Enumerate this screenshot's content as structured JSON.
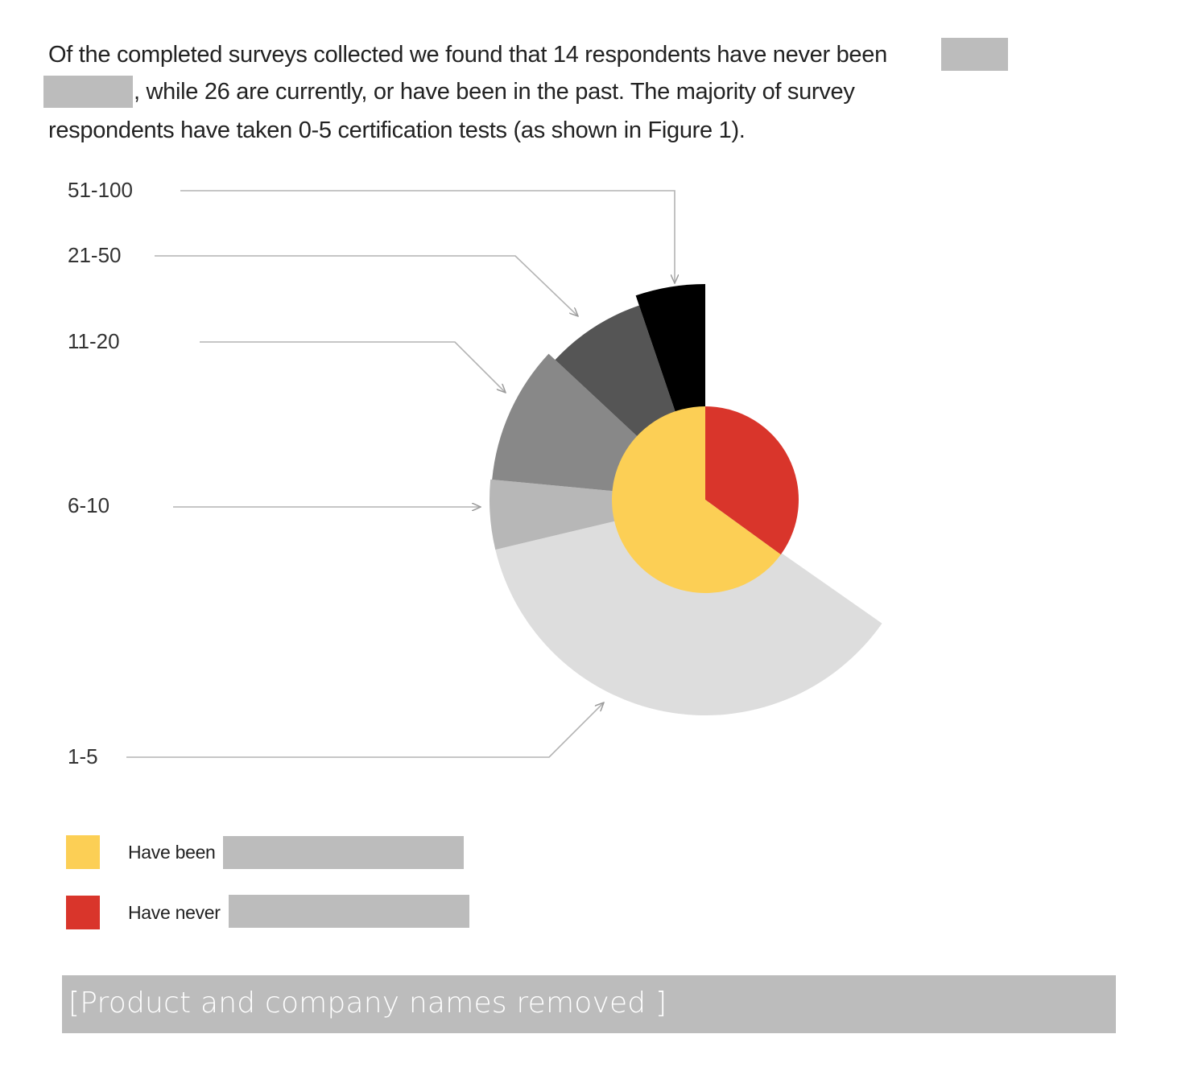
{
  "paragraph": {
    "line1": "Of the completed surveys collected we found that 14 respondents have never been",
    "line2": ", while 26 are currently, or have been in the past. The majority of survey",
    "line3": "respondents have taken 0-5 certification tests (as shown in Figure 1)."
  },
  "chart_data": {
    "type": "pie",
    "inner_pie": {
      "slices": [
        {
          "label": "Have never",
          "value": 14,
          "color": "#d9352b"
        },
        {
          "label": "Have been",
          "value": 26,
          "color": "#fccf55"
        }
      ]
    },
    "outer_ring": {
      "slices": [
        {
          "label": "1-5",
          "value": 14,
          "color": "#dddddd"
        },
        {
          "label": "6-10",
          "value": 2,
          "color": "#b7b7b7"
        },
        {
          "label": "11-20",
          "value": 4,
          "color": "#888888"
        },
        {
          "label": "21-50",
          "value": 3,
          "color": "#555555"
        },
        {
          "label": "51-100",
          "value": 2,
          "color": "#000000"
        }
      ]
    },
    "legend": [
      {
        "label": "Have been",
        "color": "#fccf55"
      },
      {
        "label": "Have never",
        "color": "#d9352b"
      }
    ]
  },
  "footer": {
    "note": "[Product and company names removed ]"
  }
}
